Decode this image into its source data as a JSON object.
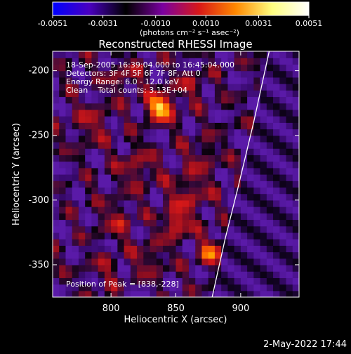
{
  "colorbar": {
    "min": -0.0051,
    "max": 0.0051,
    "ticks": [
      "-0.0051",
      "-0.0031",
      "-0.0010",
      "0.0010",
      "0.0031",
      "0.0051"
    ],
    "units": "(photons cm⁻² s⁻¹ asec⁻²)",
    "colormap_stops": [
      "#0000ff",
      "#4a00c0",
      "#000000",
      "#7a00a0",
      "#d81818",
      "#ff8800",
      "#ffff80",
      "#ffffff"
    ]
  },
  "chart_data": {
    "type": "heatmap",
    "title": "Reconstructed RHESSI Image",
    "xlabel": "Heliocentric X (arcsec)",
    "ylabel": "Heliocentric Y (arcsec)",
    "xlim": [
      755,
      945
    ],
    "ylim": [
      -375,
      -185
    ],
    "xticks": [
      800,
      850,
      900
    ],
    "yticks": [
      -200,
      -250,
      -300,
      -350
    ],
    "annotations": [
      "18-Sep-2005 16:39:04.000 to 16:45:04.000",
      "Detectors: 3F 4F 5F 6F 7F 8F, Att 0",
      "Energy Range: 6.0 - 12.0 keV",
      "Clean    Total counts: 3.13E+04"
    ],
    "peak_label": "Position of Peak = [838,-228]",
    "peak": {
      "x": 838,
      "y": -228
    },
    "sources": [
      {
        "x": 838,
        "y": -228,
        "amp": 1.0,
        "sigma": 7
      },
      {
        "x": 850,
        "y": -318,
        "amp": 0.6,
        "sigma": 7
      },
      {
        "x": 878,
        "y": -340,
        "amp": 0.55,
        "sigma": 8
      },
      {
        "x": 860,
        "y": -295,
        "amp": 0.35,
        "sigma": 12
      },
      {
        "x": 820,
        "y": -275,
        "amp": 0.35,
        "sigma": 10
      },
      {
        "x": 805,
        "y": -315,
        "amp": 0.3,
        "sigma": 10
      },
      {
        "x": 830,
        "y": -345,
        "amp": 0.3,
        "sigma": 9
      },
      {
        "x": 785,
        "y": -240,
        "amp": 0.3,
        "sigma": 11
      },
      {
        "x": 810,
        "y": -205,
        "amp": 0.28,
        "sigma": 10
      },
      {
        "x": 860,
        "y": -210,
        "amp": 0.25,
        "sigma": 10
      },
      {
        "x": 870,
        "y": -265,
        "amp": 0.28,
        "sigma": 9
      },
      {
        "x": 795,
        "y": -355,
        "amp": 0.2,
        "sigma": 10
      }
    ],
    "limb": [
      [
        922,
        -185
      ],
      [
        910,
        -240
      ],
      [
        898,
        -290
      ],
      [
        888,
        -330
      ],
      [
        878,
        -375
      ]
    ]
  },
  "date_stamp": "2-May-2022 17:44"
}
